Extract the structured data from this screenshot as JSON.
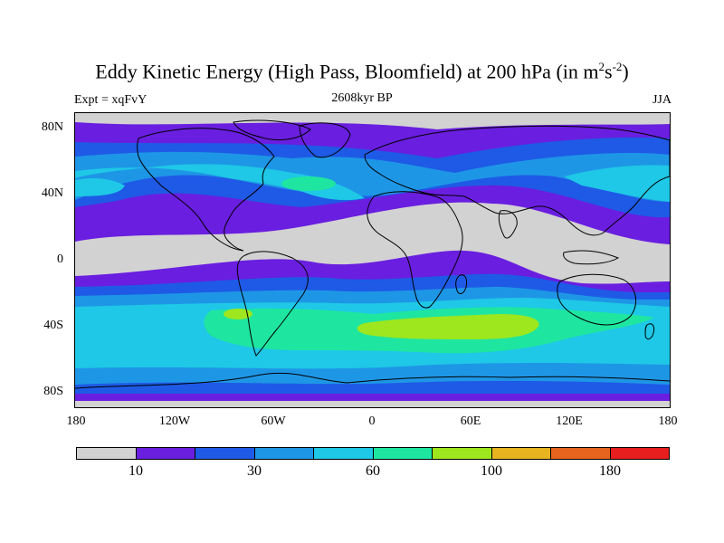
{
  "title": {
    "main": "Eddy Kinetic Energy (High Pass, Bloomfield) at 200 hPa (in m",
    "sup1": "2",
    "mid": "s",
    "sup2": "-2",
    "end": ")"
  },
  "subtitle": {
    "left": "Expt = xqFvY",
    "center": "2608kyr BP",
    "right": "JJA"
  },
  "map": {
    "lat_ticks": [
      "80N",
      "40N",
      "0",
      "40S",
      "80S"
    ],
    "lon_ticks": [
      "180",
      "120W",
      "60W",
      "0",
      "60E",
      "120E",
      "180"
    ]
  },
  "colorbar": {
    "colors": [
      "#d2d2d2",
      "#6a1ee0",
      "#1e5ae6",
      "#1e96e6",
      "#1ec8e6",
      "#1ee6a0",
      "#9ee61e",
      "#e6b41e",
      "#e6641e",
      "#e61e1e"
    ],
    "labels": [
      "10",
      "30",
      "60",
      "100",
      "180"
    ]
  }
}
